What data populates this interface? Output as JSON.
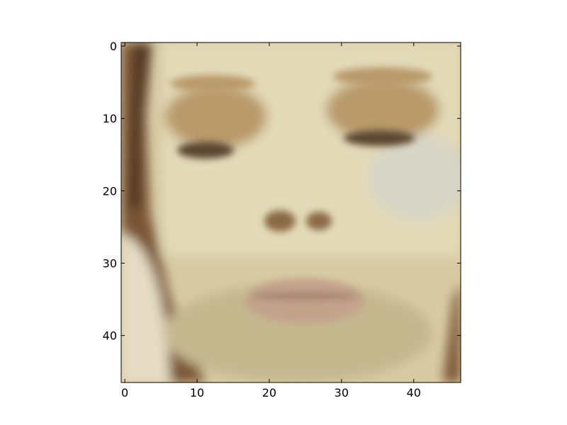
{
  "chart_data": {
    "type": "heatmap",
    "title": "",
    "xlabel": "",
    "ylabel": "",
    "image_content": "blurred-face-photo",
    "image_shape": [
      47,
      47
    ],
    "xlim": [
      -0.5,
      46.5
    ],
    "ylim": [
      46.5,
      -0.5
    ],
    "x_ticks": [
      0,
      10,
      20,
      30,
      40
    ],
    "y_ticks": [
      0,
      10,
      20,
      30,
      40
    ],
    "x_tick_labels": [
      "0",
      "10",
      "20",
      "30",
      "40"
    ],
    "y_tick_labels": [
      "0",
      "10",
      "20",
      "30",
      "40"
    ],
    "colors": {
      "skin": "#d8cba4",
      "skin_light": "#e3dab8",
      "skin_shadow": "#c4b88f",
      "hair": "#7a5534",
      "hair_dark": "#4f3420",
      "eye_shadow": "#b99a6a",
      "eye_lid": "#5c4630",
      "nostril": "#8a6a45",
      "lips": "#c4a38c",
      "lips_dark": "#a58470",
      "shoulder": "#e6dcc5",
      "cheek_cool": "#d7d5c6"
    }
  }
}
